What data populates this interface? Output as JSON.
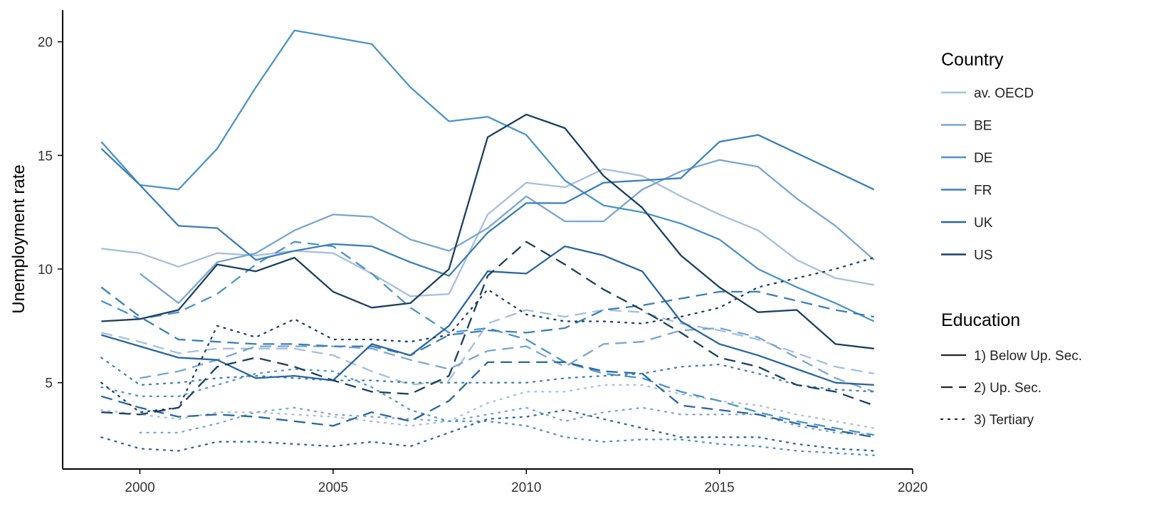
{
  "chart_data": {
    "type": "line",
    "title": "",
    "xlabel": "",
    "ylabel": "Unemployment rate",
    "xlim": [
      1998,
      2020
    ],
    "ylim": [
      1.2,
      21.4
    ],
    "x_ticks": [
      2000,
      2005,
      2010,
      2015,
      2020
    ],
    "y_ticks": [
      5,
      10,
      15,
      20
    ],
    "grid": false,
    "legend_position": "right",
    "legends": {
      "country": {
        "title": "Country",
        "items": [
          {
            "key": "av. OECD",
            "label": "av. OECD",
            "color": "#a6bfdc"
          },
          {
            "key": "BE",
            "label": "BE",
            "color": "#7aa5cf"
          },
          {
            "key": "DE",
            "label": "DE",
            "color": "#4c93c6"
          },
          {
            "key": "FR",
            "label": "FR",
            "color": "#3b7fb6"
          },
          {
            "key": "UK",
            "label": "UK",
            "color": "#2a65a0"
          },
          {
            "key": "US",
            "label": "US",
            "color": "#1c3f60"
          }
        ]
      },
      "education": {
        "title": "Education",
        "items": [
          {
            "key": "below",
            "label": "1) Below Up. Sec.",
            "dash": "solid"
          },
          {
            "key": "upsec",
            "label": "2) Up. Sec.",
            "dash": "dashed"
          },
          {
            "key": "tertiary",
            "label": "3) Tertiary",
            "dash": "dotted"
          }
        ]
      }
    },
    "series": [
      {
        "country": "av. OECD",
        "education": "below",
        "x": [
          1999,
          2000,
          2001,
          2002,
          2003,
          2004,
          2005,
          2006,
          2007,
          2008,
          2009,
          2010,
          2011,
          2012,
          2013,
          2014,
          2015,
          2016,
          2017,
          2018,
          2019
        ],
        "y": [
          10.9,
          10.7,
          10.1,
          10.7,
          10.6,
          10.8,
          10.7,
          9.8,
          8.8,
          8.9,
          12.4,
          13.8,
          13.6,
          14.4,
          14.1,
          13.2,
          12.4,
          11.7,
          10.4,
          9.6,
          9.3
        ]
      },
      {
        "country": "av. OECD",
        "education": "upsec",
        "x": [
          1999,
          2000,
          2001,
          2002,
          2003,
          2004,
          2005,
          2006,
          2007,
          2008,
          2009,
          2010,
          2011,
          2012,
          2013,
          2014,
          2015,
          2016,
          2017,
          2018,
          2019
        ],
        "y": [
          7.2,
          6.8,
          6.3,
          6.5,
          6.5,
          6.5,
          6.2,
          5.5,
          4.9,
          5.1,
          7.6,
          8.2,
          7.9,
          8.2,
          8.1,
          7.6,
          7.3,
          6.9,
          6.3,
          5.7,
          5.4
        ]
      },
      {
        "country": "av. OECD",
        "education": "tertiary",
        "x": [
          1999,
          2000,
          2001,
          2002,
          2003,
          2004,
          2005,
          2006,
          2007,
          2008,
          2009,
          2010,
          2011,
          2012,
          2013,
          2014,
          2015,
          2016,
          2017,
          2018,
          2019
        ],
        "y": [
          3.8,
          3.6,
          3.4,
          3.7,
          3.7,
          3.6,
          3.5,
          3.3,
          3.1,
          3.3,
          4.1,
          4.6,
          4.6,
          4.9,
          4.9,
          4.5,
          4.2,
          4.0,
          3.6,
          3.3,
          3.0
        ]
      },
      {
        "country": "BE",
        "education": "below",
        "x": [
          2000,
          2001,
          2002,
          2003,
          2004,
          2005,
          2006,
          2007,
          2008,
          2009,
          2010,
          2011,
          2012,
          2013,
          2014,
          2015,
          2016,
          2017,
          2018,
          2019
        ],
        "y": [
          9.8,
          8.5,
          10.3,
          10.7,
          11.7,
          12.4,
          12.3,
          11.3,
          10.8,
          11.8,
          13.2,
          12.1,
          12.1,
          13.5,
          14.3,
          14.8,
          14.5,
          13.1,
          11.9,
          10.4
        ]
      },
      {
        "country": "BE",
        "education": "upsec",
        "x": [
          2000,
          2001,
          2002,
          2003,
          2004,
          2005,
          2006,
          2007,
          2008,
          2009,
          2010,
          2011,
          2012,
          2013,
          2014,
          2015,
          2016,
          2017,
          2018,
          2019
        ],
        "y": [
          5.2,
          5.5,
          6.0,
          6.6,
          6.6,
          6.6,
          6.5,
          6.0,
          5.6,
          6.4,
          6.6,
          5.7,
          6.7,
          6.8,
          7.3,
          7.4,
          7.0,
          6.1,
          5.2,
          4.6
        ]
      },
      {
        "country": "BE",
        "education": "tertiary",
        "x": [
          2000,
          2001,
          2002,
          2003,
          2004,
          2005,
          2006,
          2007,
          2008,
          2009,
          2010,
          2011,
          2012,
          2013,
          2014,
          2015,
          2016,
          2017,
          2018,
          2019
        ],
        "y": [
          2.8,
          2.8,
          3.2,
          3.7,
          3.9,
          3.6,
          3.5,
          3.4,
          3.3,
          3.6,
          3.9,
          3.3,
          3.7,
          3.9,
          3.6,
          3.6,
          3.6,
          3.1,
          2.8,
          2.7
        ]
      },
      {
        "country": "DE",
        "education": "below",
        "x": [
          1999,
          2000,
          2001,
          2002,
          2003,
          2004,
          2005,
          2006,
          2007,
          2008,
          2009,
          2010,
          2011,
          2012,
          2013,
          2014,
          2015,
          2016,
          2017,
          2018,
          2019
        ],
        "y": [
          15.6,
          13.7,
          13.5,
          15.3,
          18.0,
          20.5,
          20.2,
          19.9,
          18.0,
          16.5,
          16.7,
          15.9,
          13.9,
          12.8,
          12.5,
          12.0,
          11.3,
          10.0,
          9.2,
          8.5,
          7.7
        ]
      },
      {
        "country": "DE",
        "education": "upsec",
        "x": [
          1999,
          2000,
          2001,
          2002,
          2003,
          2004,
          2005,
          2006,
          2007,
          2008,
          2009,
          2010,
          2011,
          2012,
          2013,
          2014,
          2015,
          2016,
          2017,
          2018,
          2019
        ],
        "y": [
          8.6,
          7.8,
          8.1,
          8.9,
          10.2,
          11.2,
          11.0,
          9.8,
          8.3,
          7.2,
          7.4,
          6.9,
          5.9,
          5.4,
          5.2,
          4.6,
          4.2,
          3.7,
          3.3,
          3.0,
          2.7
        ]
      },
      {
        "country": "DE",
        "education": "tertiary",
        "x": [
          1999,
          2000,
          2001,
          2002,
          2003,
          2004,
          2005,
          2006,
          2007,
          2008,
          2009,
          2010,
          2011,
          2012,
          2013,
          2014,
          2015,
          2016,
          2017,
          2018,
          2019
        ],
        "y": [
          4.8,
          4.4,
          4.4,
          4.9,
          5.4,
          5.6,
          5.5,
          4.8,
          3.8,
          3.3,
          3.3,
          3.1,
          2.6,
          2.4,
          2.5,
          2.5,
          2.3,
          2.2,
          2.0,
          1.9,
          1.8
        ]
      },
      {
        "country": "FR",
        "education": "below",
        "x": [
          1999,
          2000,
          2001,
          2002,
          2003,
          2004,
          2005,
          2006,
          2007,
          2008,
          2009,
          2010,
          2011,
          2012,
          2013,
          2014,
          2015,
          2016,
          2017,
          2018,
          2019
        ],
        "y": [
          15.3,
          13.7,
          11.9,
          11.8,
          10.4,
          10.8,
          11.1,
          11.0,
          10.3,
          9.7,
          11.6,
          12.9,
          12.9,
          13.8,
          13.9,
          14.0,
          15.6,
          15.9,
          15.1,
          14.3,
          13.5
        ]
      },
      {
        "country": "FR",
        "education": "upsec",
        "x": [
          1999,
          2000,
          2001,
          2002,
          2003,
          2004,
          2005,
          2006,
          2007,
          2008,
          2009,
          2010,
          2011,
          2012,
          2013,
          2014,
          2015,
          2016,
          2017,
          2018,
          2019
        ],
        "y": [
          9.2,
          7.9,
          6.9,
          6.8,
          6.7,
          6.7,
          6.6,
          6.6,
          6.2,
          7.1,
          7.3,
          7.2,
          7.4,
          8.2,
          8.4,
          8.7,
          9.0,
          9.0,
          8.6,
          8.2,
          7.9
        ]
      },
      {
        "country": "FR",
        "education": "tertiary",
        "x": [
          1999,
          2000,
          2001,
          2002,
          2003,
          2004,
          2005,
          2006,
          2007,
          2008,
          2009,
          2010,
          2011,
          2012,
          2013,
          2014,
          2015,
          2016,
          2017,
          2018,
          2019
        ],
        "y": [
          6.1,
          4.9,
          5.0,
          5.2,
          5.3,
          5.2,
          5.1,
          5.1,
          5.0,
          5.0,
          5.0,
          5.0,
          5.2,
          5.3,
          5.4,
          5.7,
          5.8,
          5.4,
          4.9,
          4.7,
          4.6
        ]
      },
      {
        "country": "UK",
        "education": "below",
        "x": [
          1999,
          2000,
          2001,
          2002,
          2003,
          2004,
          2005,
          2006,
          2007,
          2008,
          2009,
          2010,
          2011,
          2012,
          2013,
          2014,
          2015,
          2016,
          2017,
          2018,
          2019
        ],
        "y": [
          7.1,
          6.6,
          6.1,
          6.0,
          5.2,
          5.3,
          5.1,
          6.7,
          6.2,
          7.5,
          9.9,
          9.8,
          11.0,
          10.6,
          9.9,
          7.7,
          6.7,
          6.2,
          5.6,
          5.0,
          4.9
        ]
      },
      {
        "country": "UK",
        "education": "upsec",
        "x": [
          1999,
          2000,
          2001,
          2002,
          2003,
          2004,
          2005,
          2006,
          2007,
          2008,
          2009,
          2010,
          2011,
          2012,
          2013,
          2014,
          2015,
          2016,
          2017,
          2018,
          2019
        ],
        "y": [
          4.4,
          3.9,
          3.5,
          3.6,
          3.5,
          3.3,
          3.1,
          3.7,
          3.3,
          4.2,
          5.9,
          5.9,
          5.9,
          5.5,
          5.4,
          4.0,
          3.8,
          3.6,
          3.2,
          2.9,
          2.6
        ]
      },
      {
        "country": "UK",
        "education": "tertiary",
        "x": [
          1999,
          2000,
          2001,
          2002,
          2003,
          2004,
          2005,
          2006,
          2007,
          2008,
          2009,
          2010,
          2011,
          2012,
          2013,
          2014,
          2015,
          2016,
          2017,
          2018,
          2019
        ],
        "y": [
          2.6,
          2.1,
          2.0,
          2.4,
          2.4,
          2.3,
          2.2,
          2.4,
          2.2,
          2.8,
          3.4,
          3.5,
          3.8,
          3.4,
          3.0,
          2.6,
          2.6,
          2.6,
          2.3,
          2.1,
          2.0
        ]
      },
      {
        "country": "US",
        "education": "below",
        "x": [
          1999,
          2000,
          2001,
          2002,
          2003,
          2004,
          2005,
          2006,
          2007,
          2008,
          2009,
          2010,
          2011,
          2012,
          2013,
          2014,
          2015,
          2016,
          2017,
          2018,
          2019
        ],
        "y": [
          7.7,
          7.8,
          8.2,
          10.2,
          9.9,
          10.5,
          9.0,
          8.3,
          8.5,
          10.0,
          15.8,
          16.8,
          16.2,
          14.1,
          12.7,
          10.6,
          9.2,
          8.1,
          8.2,
          6.7,
          6.5
        ]
      },
      {
        "country": "US",
        "education": "upsec",
        "x": [
          1999,
          2000,
          2001,
          2002,
          2003,
          2004,
          2005,
          2006,
          2007,
          2008,
          2009,
          2010,
          2011,
          2012,
          2013,
          2014,
          2015,
          2016,
          2017,
          2018,
          2019
        ],
        "y": [
          3.7,
          3.6,
          3.9,
          5.7,
          6.1,
          5.7,
          5.1,
          4.6,
          4.5,
          5.3,
          9.7,
          11.2,
          10.2,
          9.1,
          8.2,
          7.2,
          6.1,
          5.7,
          4.9,
          4.6,
          4.0
        ]
      },
      {
        "country": "US",
        "education": "tertiary",
        "x": [
          1999,
          2000,
          2001,
          2002,
          2003,
          2004,
          2005,
          2006,
          2007,
          2008,
          2009,
          2010,
          2011,
          2012,
          2013,
          2014,
          2015,
          2016,
          2017,
          2018,
          2019
        ],
        "y": [
          5.0,
          3.7,
          3.9,
          7.5,
          7.0,
          7.8,
          6.9,
          6.9,
          6.8,
          7.1,
          9.1,
          8.0,
          7.7,
          7.7,
          7.6,
          7.9,
          8.3,
          9.2,
          9.6,
          10.0,
          10.5
        ]
      }
    ]
  }
}
